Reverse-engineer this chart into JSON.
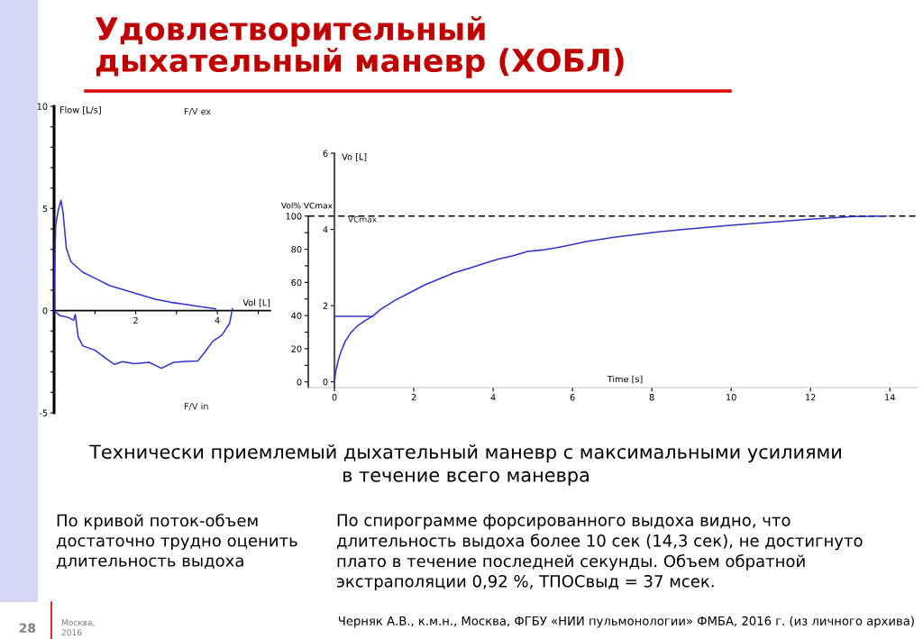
{
  "chart_data": [
    {
      "type": "line",
      "title": "Удовлетворительный\nдыхательный маневр (ХОБЛ)",
      "xlabel": "Vol [L]",
      "ylabel": "Flow [L/s]",
      "xlim": [
        0,
        5.3
      ],
      "ylim": [
        -5,
        10
      ],
      "xticks": [
        {
          "value": 1,
          "label": null
        },
        2,
        {
          "value": 3,
          "label": null
        },
        4,
        {
          "value": 5,
          "label": null
        }
      ],
      "yticks": [
        -5,
        {
          "value": -4,
          "label": null
        },
        {
          "value": -3,
          "label": null
        },
        {
          "value": -2,
          "label": null
        },
        {
          "value": -1,
          "label": null
        },
        0,
        {
          "value": 1,
          "label": null
        },
        {
          "value": 2,
          "label": null
        },
        {
          "value": 3,
          "label": null
        },
        {
          "value": 4,
          "label": null
        },
        5,
        {
          "value": 6,
          "label": null
        },
        {
          "value": 7,
          "label": null
        },
        {
          "value": 8,
          "label": null
        },
        {
          "value": 9,
          "label": null
        },
        10
      ],
      "series": [
        {
          "color": "#3333cc",
          "x": [
            0,
            0,
            0.01,
            0.04,
            0.1,
            0.17,
            0.22,
            0.3,
            0.41,
            0.7,
            1.0,
            1.37,
            1.74,
            2.11,
            2.48,
            2.85,
            3.22,
            3.59,
            3.96
          ],
          "values": [
            0,
            0.85,
            2.0,
            4.2,
            4.9,
            5.4,
            4.8,
            3.06,
            2.4,
            1.88,
            1.59,
            1.22,
            1.0,
            0.78,
            0.56,
            0.41,
            0.31,
            0.19,
            0.09
          ]
        },
        {
          "color": "#3333cc",
          "x": [
            4.37,
            4.3,
            4.11,
            3.89,
            3.67,
            3.52,
            3.22,
            2.93,
            2.63,
            2.33,
            1.96,
            1.67,
            1.48,
            1.3,
            1.0,
            0.7,
            0.59,
            0.52,
            0.48,
            0.33,
            0.15,
            0
          ],
          "values": [
            0.1,
            -0.62,
            -1.2,
            -1.5,
            -2.09,
            -2.46,
            -2.49,
            -2.53,
            -2.82,
            -2.53,
            -2.6,
            -2.5,
            -2.63,
            -2.38,
            -1.94,
            -1.72,
            -1.28,
            -0.18,
            -0.47,
            -0.32,
            -0.25,
            0
          ]
        }
      ],
      "annotations": [
        "F/V ex",
        "F/V in",
        "Технически приемлемый дыхательный маневр с максимальными усилиями\nв течение всего маневра",
        "По кривой поток-объем\nдостаточно трудно оценить\nдлительность выдоха",
        "28",
        "Москва,\n2016"
      ]
    },
    {
      "type": "line",
      "xlabel": "Time [s]",
      "ylabel": "Vol% VCmax",
      "y2label": "Vo [L]",
      "xlim": [
        -0.66,
        14.7
      ],
      "ylim": [
        -3.4,
        137.9
      ],
      "y2lim": [
        -0.15,
        6
      ],
      "xticks": [
        0,
        2,
        4,
        6,
        8,
        10,
        12,
        14
      ],
      "yticks": [
        0,
        {
          "value": 10,
          "label": null
        },
        20,
        {
          "value": 30,
          "label": null
        },
        40,
        {
          "value": 50,
          "label": null
        },
        60,
        {
          "value": 70,
          "label": null
        },
        80,
        {
          "value": 90,
          "label": null
        },
        100
      ],
      "y2ticks": [
        0,
        2,
        4,
        6
      ],
      "series": [
        {
          "color": "#3333cc",
          "axis": "y2",
          "x": [
            0,
            0.03,
            0.09,
            0.16,
            0.27,
            0.42,
            0.57,
            0.79,
            0.96,
            1.16,
            1.53,
            1.9,
            2.27,
            2.64,
            3.01,
            3.39,
            3.76,
            4.13,
            4.5,
            4.87,
            5.24,
            5.61,
            5.98,
            6.35,
            6.97,
            7.23,
            8.22,
            8.59,
            9.91,
            10.87,
            11.9,
            13.08,
            13.92
          ],
          "values": [
            0,
            0.26,
            0.54,
            0.78,
            1.06,
            1.3,
            1.46,
            1.62,
            1.72,
            1.9,
            2.14,
            2.34,
            2.54,
            2.7,
            2.86,
            2.98,
            3.1,
            3.22,
            3.31,
            3.42,
            3.46,
            3.52,
            3.6,
            3.68,
            3.78,
            3.82,
            3.94,
            3.98,
            4.1,
            4.18,
            4.26,
            4.34,
            4.35
          ]
        },
        {
          "color": "#3333cc",
          "axis": "y2",
          "x": [
            0,
            0.96
          ],
          "values": [
            1.72,
            1.72
          ]
        }
      ],
      "ref_lines": [
        {
          "axis": "y",
          "value": 100,
          "label": "VCmax",
          "color": "#000000",
          "line_style": "dashed"
        }
      ],
      "annotations": [
        "По спирограмме форсированного выдоха видно, что\nдлительность выдоха более 10 сек (14,3 сек), не достигнуто\nплато в течение последней секунды. Объем обратной\nэкстраполяции 0,92 %, ТПОСвыд = 37 мсек.",
        "Черняк А.В., к.м.н., Москва, ФГБУ «НИИ пульмонологии» ФМБА, 2016 г. (из личного архива)"
      ]
    }
  ]
}
